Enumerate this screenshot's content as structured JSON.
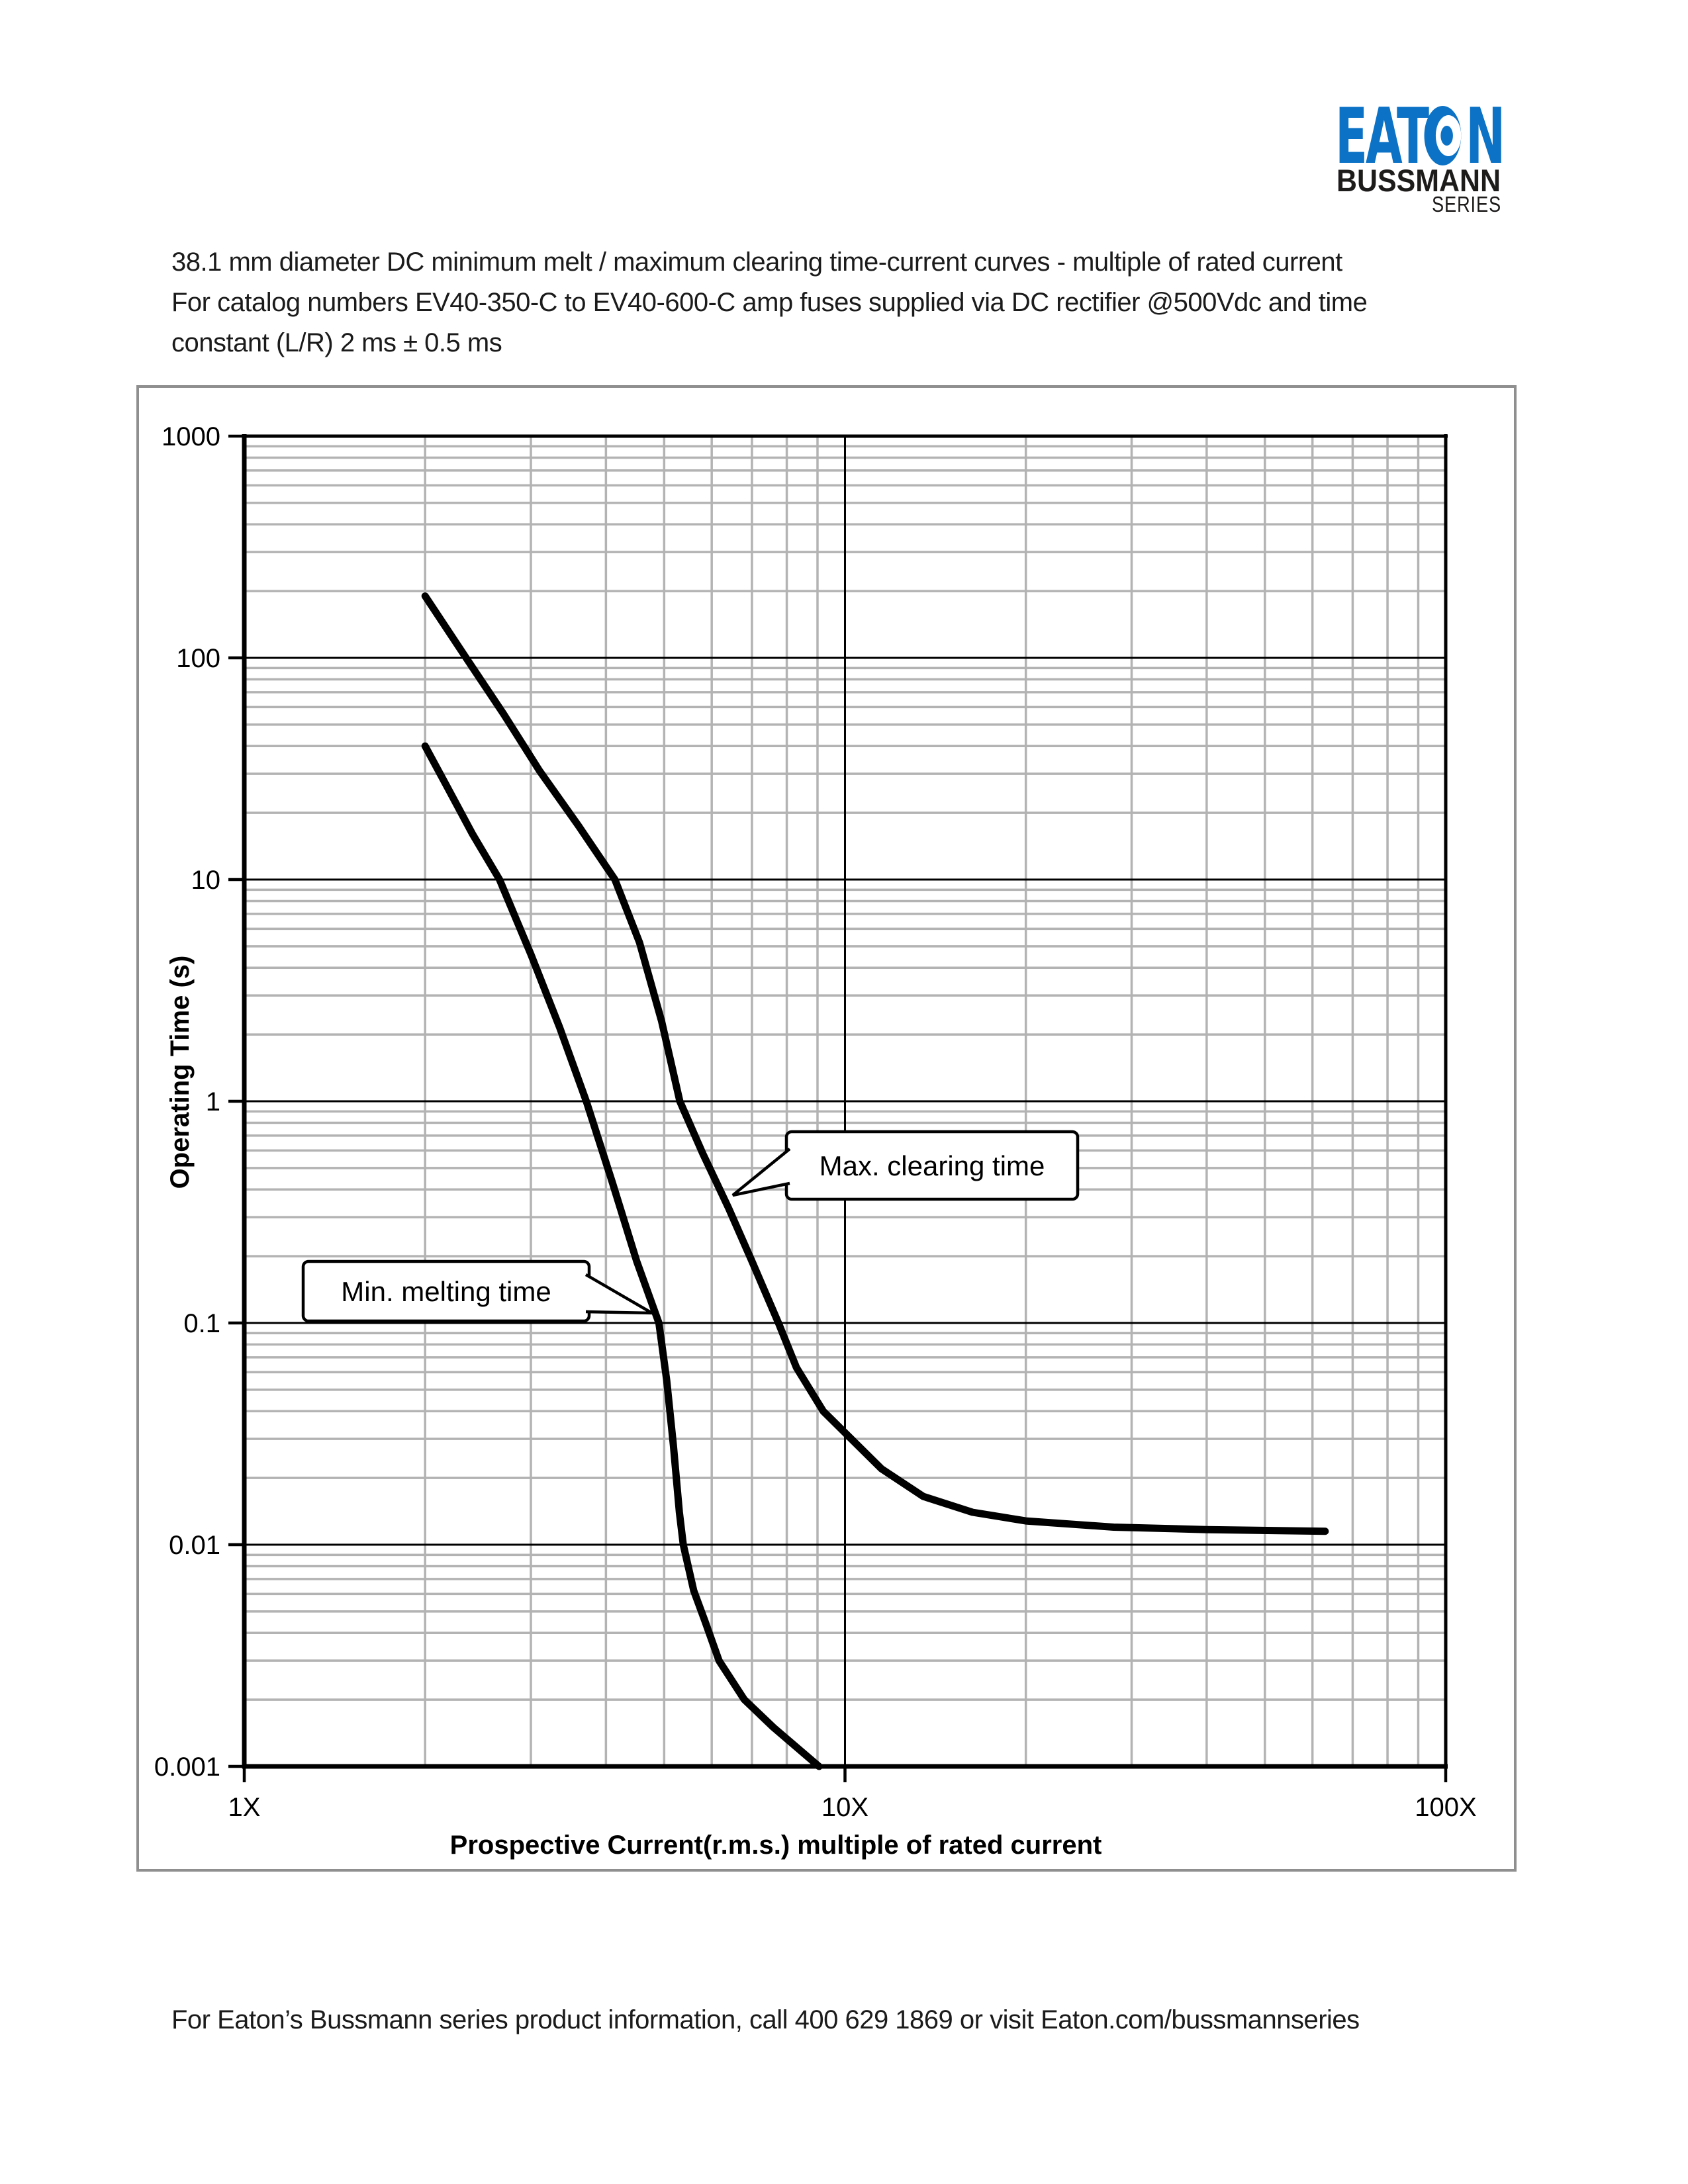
{
  "logo": {
    "eaton_left": "EAT",
    "eaton_right": "N",
    "brand": "BUSSMANN",
    "sub_brand": "SERIES",
    "eaton_color": "#0c72c5",
    "text_color": "#1e1b1b"
  },
  "title": {
    "line1": "38.1 mm diameter DC minimum melt / maximum clearing time-current curves - multiple of rated current",
    "line2": "For catalog numbers EV40-350-C to EV40-600-C amp fuses supplied via DC rectifier @500Vdc and time",
    "line3": "constant (L/R) 2 ms ± 0.5 ms"
  },
  "footer": {
    "text": "For Eaton’s Bussmann series product information, call 400 629 1869 or visit Eaton.com/bussmannseries"
  },
  "chart_data": {
    "type": "line",
    "x_scale": "log",
    "y_scale": "log",
    "xlim": [
      1,
      100
    ],
    "ylim": [
      0.001,
      1000
    ],
    "grid": "on",
    "minor_grid_color": "#b3b3b3",
    "major_grid_color": "#000000",
    "curve_color": "#000000",
    "xlabel": "Prospective Current(r.m.s.) multiple of rated current",
    "ylabel": "Operating Time (s)",
    "x_ticks": [
      {
        "value": 1,
        "label": "1X"
      },
      {
        "value": 10,
        "label": "10X"
      },
      {
        "value": 100,
        "label": "100X"
      }
    ],
    "y_ticks": [
      {
        "value": 1000,
        "label": "1000"
      },
      {
        "value": 100,
        "label": "100"
      },
      {
        "value": 10,
        "label": "10"
      },
      {
        "value": 1,
        "label": "1"
      },
      {
        "value": 0.1,
        "label": "0.1"
      },
      {
        "value": 0.01,
        "label": "0.01"
      },
      {
        "value": 0.001,
        "label": "0.001"
      }
    ],
    "series": [
      {
        "name": "Min. melting time",
        "points": [
          [
            2.0,
            40
          ],
          [
            2.18,
            26
          ],
          [
            2.4,
            16
          ],
          [
            2.66,
            10
          ],
          [
            3.0,
            4.6
          ],
          [
            3.35,
            2.15
          ],
          [
            3.71,
            1
          ],
          [
            4.1,
            0.43
          ],
          [
            4.5,
            0.19
          ],
          [
            4.9,
            0.1
          ],
          [
            5.05,
            0.055
          ],
          [
            5.18,
            0.028
          ],
          [
            5.3,
            0.014
          ],
          [
            5.38,
            0.01
          ],
          [
            5.6,
            0.0062
          ],
          [
            5.85,
            0.0045
          ],
          [
            6.17,
            0.003
          ],
          [
            6.8,
            0.002
          ],
          [
            7.6,
            0.0015
          ],
          [
            9.05,
            0.001
          ]
        ]
      },
      {
        "name": "Max. clearing time",
        "points": [
          [
            2.0,
            190
          ],
          [
            2.34,
            100
          ],
          [
            2.7,
            56
          ],
          [
            3.1,
            31
          ],
          [
            3.6,
            17.5
          ],
          [
            4.14,
            10
          ],
          [
            4.55,
            5.2
          ],
          [
            4.95,
            2.3
          ],
          [
            5.31,
            1
          ],
          [
            5.8,
            0.58
          ],
          [
            6.4,
            0.33
          ],
          [
            7.0,
            0.19
          ],
          [
            7.75,
            0.1
          ],
          [
            8.3,
            0.063
          ],
          [
            9.2,
            0.04
          ],
          [
            10,
            0.032
          ],
          [
            11.5,
            0.022
          ],
          [
            13.5,
            0.0165
          ],
          [
            16.3,
            0.014
          ],
          [
            20,
            0.0128
          ],
          [
            28,
            0.012
          ],
          [
            40,
            0.0117
          ],
          [
            63,
            0.0115
          ]
        ]
      }
    ]
  }
}
